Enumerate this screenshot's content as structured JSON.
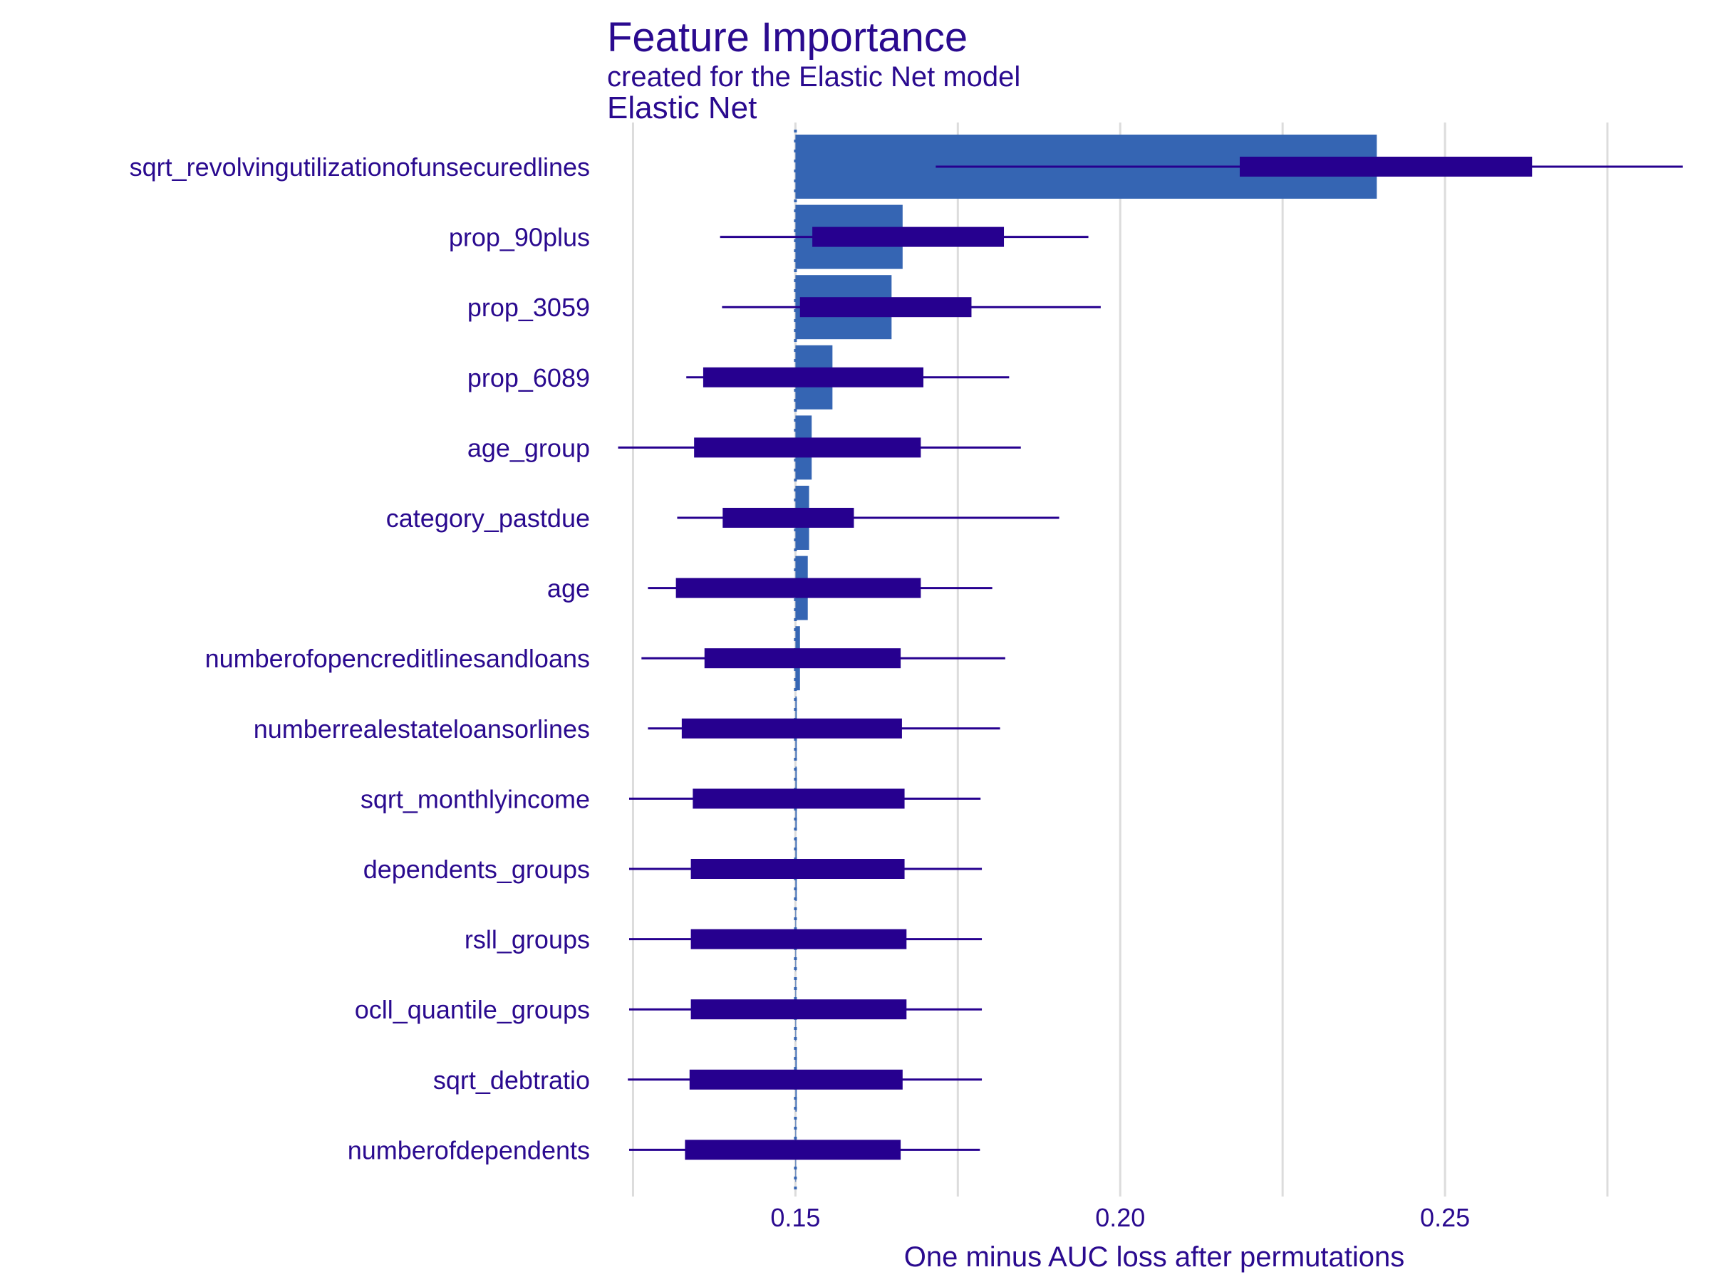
{
  "chart_data": {
    "type": "bar",
    "title": "Feature Importance",
    "subtitle": "created for the Elastic Net model",
    "model_label": "Elastic Net",
    "xlabel": "One minus AUC loss after permutations",
    "ylabel": "",
    "xlim": [
      0.121,
      0.2886
    ],
    "x_ticks": [
      "0.15",
      "0.20",
      "0.25"
    ],
    "x_tick_values": [
      0.15,
      0.2,
      0.25
    ],
    "x_minor_gridlines": [
      0.125,
      0.175,
      0.225,
      0.275
    ],
    "baseline": 0.15,
    "grid": true,
    "legend": "none",
    "colors": {
      "bar": "#3565b3",
      "interval": "#26008f",
      "text": "#2a0a8f",
      "grid": "#dcdcdc",
      "baseline": "#3565b3"
    },
    "categories": [
      "sqrt_revolvingutilizationofunsecuredlines",
      "prop_90plus",
      "prop_3059",
      "prop_6089",
      "age_group",
      "category_pastdue",
      "age",
      "numberofopencreditlinesandloans",
      "numberrealestateloansorlines",
      "sqrt_monthlyincome",
      "dependents_groups",
      "rsll_groups",
      "ocll_quantile_groups",
      "sqrt_debtratio",
      "numberofdependents"
    ],
    "values": [
      0.2395,
      0.1665,
      0.1648,
      0.1557,
      0.1525,
      0.1521,
      0.1519,
      0.1507,
      0.1502,
      0.1502,
      0.1502,
      0.1501,
      0.1501,
      0.1502,
      0.1501
    ],
    "interval_whisker": [
      [
        0.1716,
        0.2866
      ],
      [
        0.1384,
        0.1951
      ],
      [
        0.1387,
        0.197
      ],
      [
        0.1332,
        0.1829
      ],
      [
        0.1227,
        0.1847
      ],
      [
        0.1318,
        0.1906
      ],
      [
        0.1273,
        0.1803
      ],
      [
        0.1263,
        0.1823
      ],
      [
        0.1273,
        0.1815
      ],
      [
        0.1244,
        0.1785
      ],
      [
        0.1244,
        0.1787
      ],
      [
        0.1244,
        0.1787
      ],
      [
        0.1244,
        0.1787
      ],
      [
        0.1242,
        0.1787
      ],
      [
        0.1244,
        0.1784
      ]
    ],
    "interval_box": [
      [
        0.2184,
        0.2634
      ],
      [
        0.1526,
        0.1821
      ],
      [
        0.1507,
        0.1771
      ],
      [
        0.1358,
        0.1697
      ],
      [
        0.1344,
        0.1693
      ],
      [
        0.1388,
        0.159
      ],
      [
        0.1316,
        0.1693
      ],
      [
        0.136,
        0.1662
      ],
      [
        0.1325,
        0.1664
      ],
      [
        0.1342,
        0.1668
      ],
      [
        0.1339,
        0.1668
      ],
      [
        0.1339,
        0.1671
      ],
      [
        0.1339,
        0.1671
      ],
      [
        0.1337,
        0.1665
      ],
      [
        0.133,
        0.1662
      ]
    ]
  }
}
